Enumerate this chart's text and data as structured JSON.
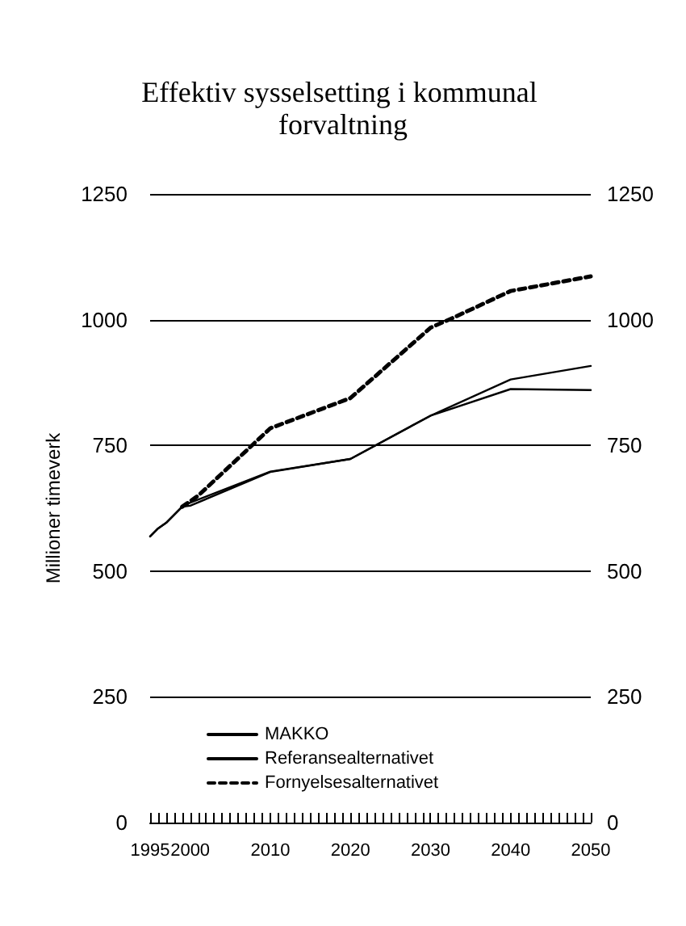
{
  "chart_data": {
    "type": "line",
    "title": "Effektiv sysselsetting i kommunal forvaltning",
    "ylabel": "Millioner timeverk",
    "series": [
      {
        "name": "MAKKO",
        "color": "#000000",
        "line_style": "solid",
        "x": [
          1995,
          1996,
          1997,
          1999,
          2000,
          2010,
          2020,
          2030,
          2040,
          2050
        ],
        "values": [
          569,
          585,
          596,
          628,
          636,
          698,
          723,
          809,
          881,
          908
        ]
      },
      {
        "name": "Referansealternativet",
        "color": "#000000",
        "line_style": "solid",
        "x": [
          1995,
          1996,
          1997,
          1999,
          2000,
          2010,
          2020,
          2030,
          2040,
          2050
        ],
        "values": [
          569,
          585,
          596,
          628,
          630,
          697,
          723,
          809,
          862,
          860
        ]
      },
      {
        "name": "Fornyelsesalternativet",
        "color": "#000000",
        "line_style": "dashed",
        "x": [
          1999,
          2001,
          2010,
          2020,
          2030,
          2033,
          2040,
          2050
        ],
        "values": [
          628,
          650,
          784,
          844,
          984,
          1005,
          1057,
          1086
        ]
      }
    ],
    "xlim": [
      1995,
      2050
    ],
    "xticks": [
      1995,
      {
        "value": 1996,
        "label": null
      },
      {
        "value": 1997,
        "label": null
      },
      {
        "value": 1998,
        "label": null
      },
      {
        "value": 1999,
        "label": null
      },
      2000,
      {
        "value": 2001,
        "label": null
      },
      {
        "value": 2002,
        "label": null
      },
      {
        "value": 2003,
        "label": null
      },
      {
        "value": 2004,
        "label": null
      },
      {
        "value": 2005,
        "label": null
      },
      {
        "value": 2006,
        "label": null
      },
      {
        "value": 2007,
        "label": null
      },
      {
        "value": 2008,
        "label": null
      },
      {
        "value": 2009,
        "label": null
      },
      2010,
      {
        "value": 2011,
        "label": null
      },
      {
        "value": 2012,
        "label": null
      },
      {
        "value": 2013,
        "label": null
      },
      {
        "value": 2014,
        "label": null
      },
      {
        "value": 2015,
        "label": null
      },
      {
        "value": 2016,
        "label": null
      },
      {
        "value": 2017,
        "label": null
      },
      {
        "value": 2018,
        "label": null
      },
      {
        "value": 2019,
        "label": null
      },
      2020,
      {
        "value": 2021,
        "label": null
      },
      {
        "value": 2022,
        "label": null
      },
      {
        "value": 2023,
        "label": null
      },
      {
        "value": 2024,
        "label": null
      },
      {
        "value": 2025,
        "label": null
      },
      {
        "value": 2026,
        "label": null
      },
      {
        "value": 2027,
        "label": null
      },
      {
        "value": 2028,
        "label": null
      },
      {
        "value": 2029,
        "label": null
      },
      2030,
      {
        "value": 2031,
        "label": null
      },
      {
        "value": 2032,
        "label": null
      },
      {
        "value": 2033,
        "label": null
      },
      {
        "value": 2034,
        "label": null
      },
      {
        "value": 2035,
        "label": null
      },
      {
        "value": 2036,
        "label": null
      },
      {
        "value": 2037,
        "label": null
      },
      {
        "value": 2038,
        "label": null
      },
      {
        "value": 2039,
        "label": null
      },
      2040,
      {
        "value": 2041,
        "label": null
      },
      {
        "value": 2042,
        "label": null
      },
      {
        "value": 2043,
        "label": null
      },
      {
        "value": 2044,
        "label": null
      },
      {
        "value": 2045,
        "label": null
      },
      {
        "value": 2046,
        "label": null
      },
      {
        "value": 2047,
        "label": null
      },
      {
        "value": 2048,
        "label": null
      },
      {
        "value": 2049,
        "label": null
      },
      2050
    ],
    "ylim": [
      0,
      1250
    ],
    "yticks": [
      0,
      250,
      500,
      750,
      1000,
      1250
    ],
    "y2lim": [
      0,
      1250
    ],
    "y2ticks": [
      0,
      250,
      500,
      750,
      1000,
      1250
    ],
    "grid": "y",
    "legend": "bottom left",
    "marker": "none"
  }
}
